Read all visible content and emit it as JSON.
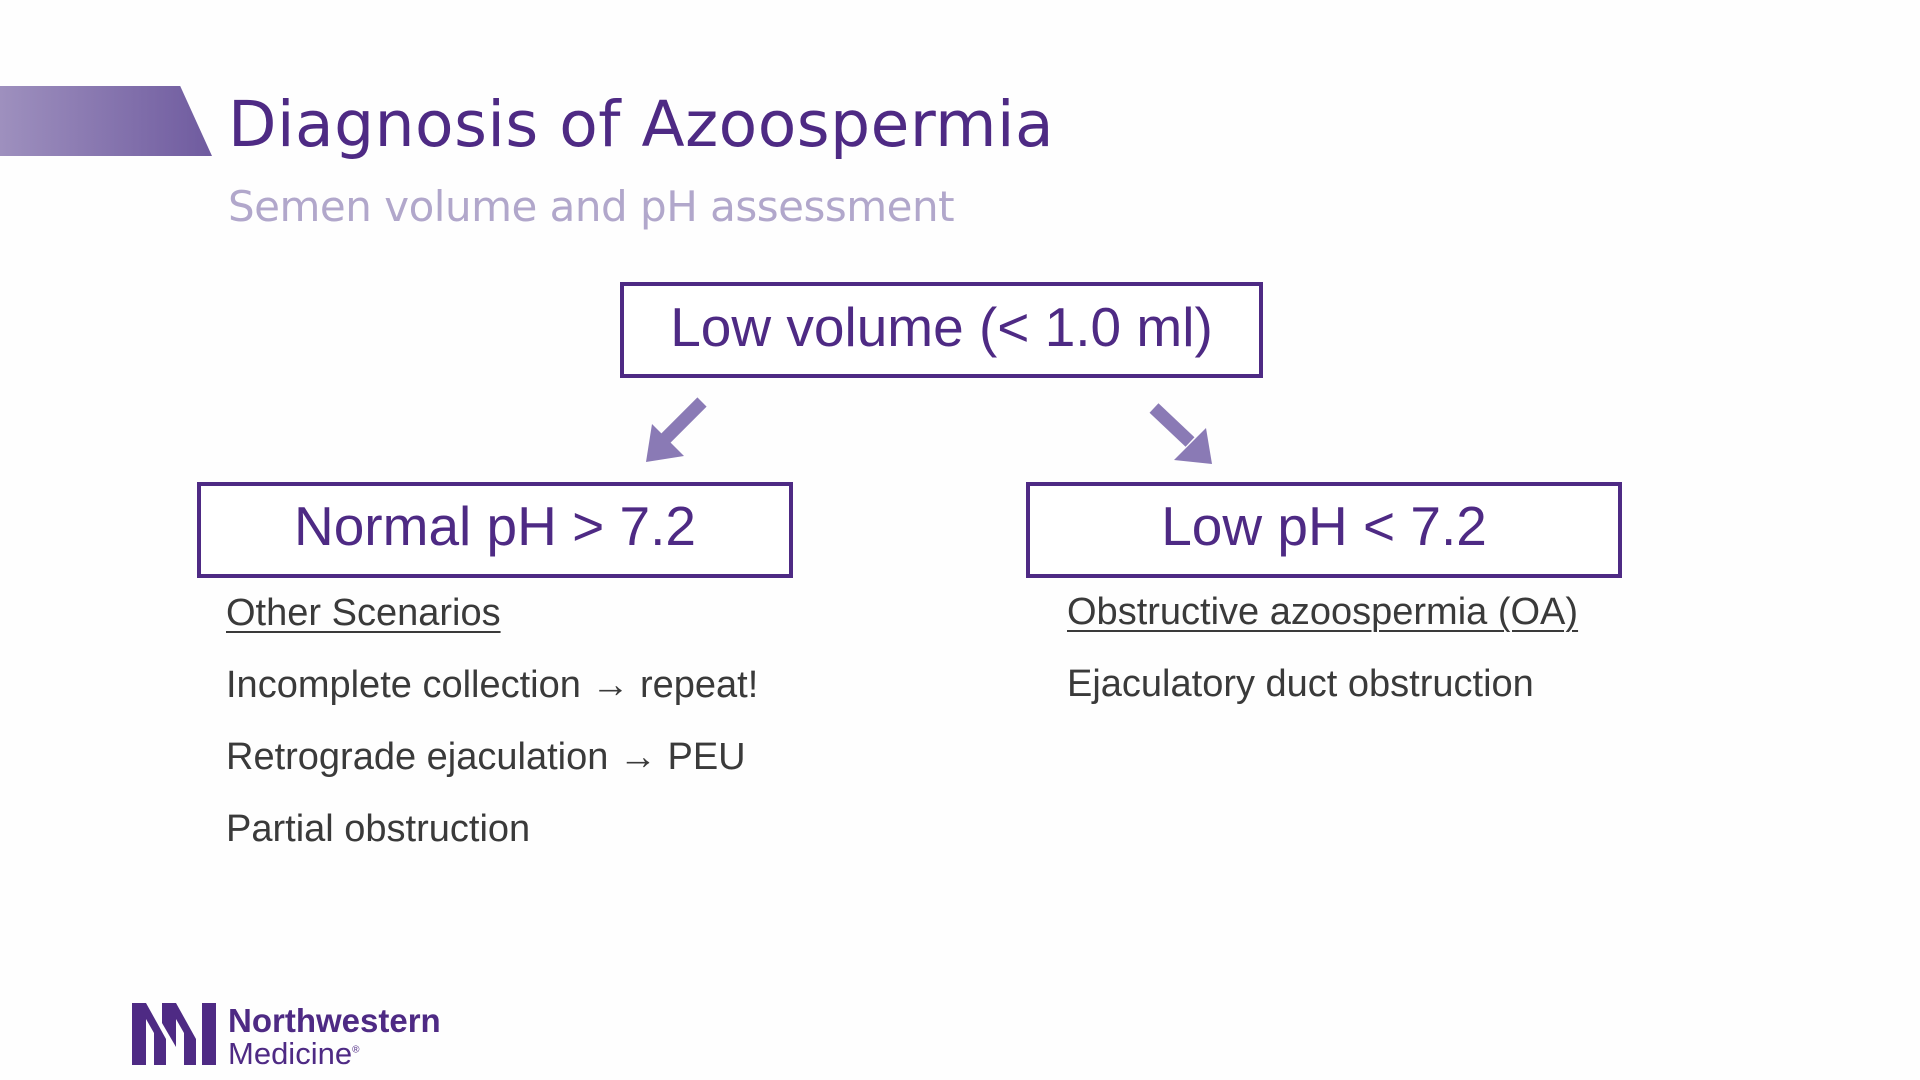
{
  "slide": {
    "title": "Diagnosis of Azoospermia",
    "subtitle": "Semen volume and pH assessment"
  },
  "flowchart": {
    "top_box": "Low volume (< 1.0 ml)",
    "left_box": "Normal pH > 7.2",
    "right_box": "Low pH < 7.2"
  },
  "left_column": {
    "heading": "Other Scenarios",
    "items": [
      "Incomplete collection → repeat!",
      "Retrograde ejaculation → PEU",
      "Partial obstruction"
    ]
  },
  "right_column": {
    "heading": "Obstructive azoospermia (OA)",
    "items": [
      "Ejaculatory duct obstruction"
    ]
  },
  "logo": {
    "name": "Northwestern",
    "sub": "Medicine",
    "mark": "NM",
    "registered": "®"
  },
  "colors": {
    "brand_purple": "#4e2a84",
    "subtitle_lavender": "#b1a7cb",
    "arrow_purple": "#8a7ab5",
    "body_text": "#3a3a3a"
  },
  "icons": {
    "down_left_arrow": "arrow-down-left-icon",
    "down_right_arrow": "arrow-down-right-icon",
    "logo_mark": "northwestern-medicine-logo-icon"
  }
}
